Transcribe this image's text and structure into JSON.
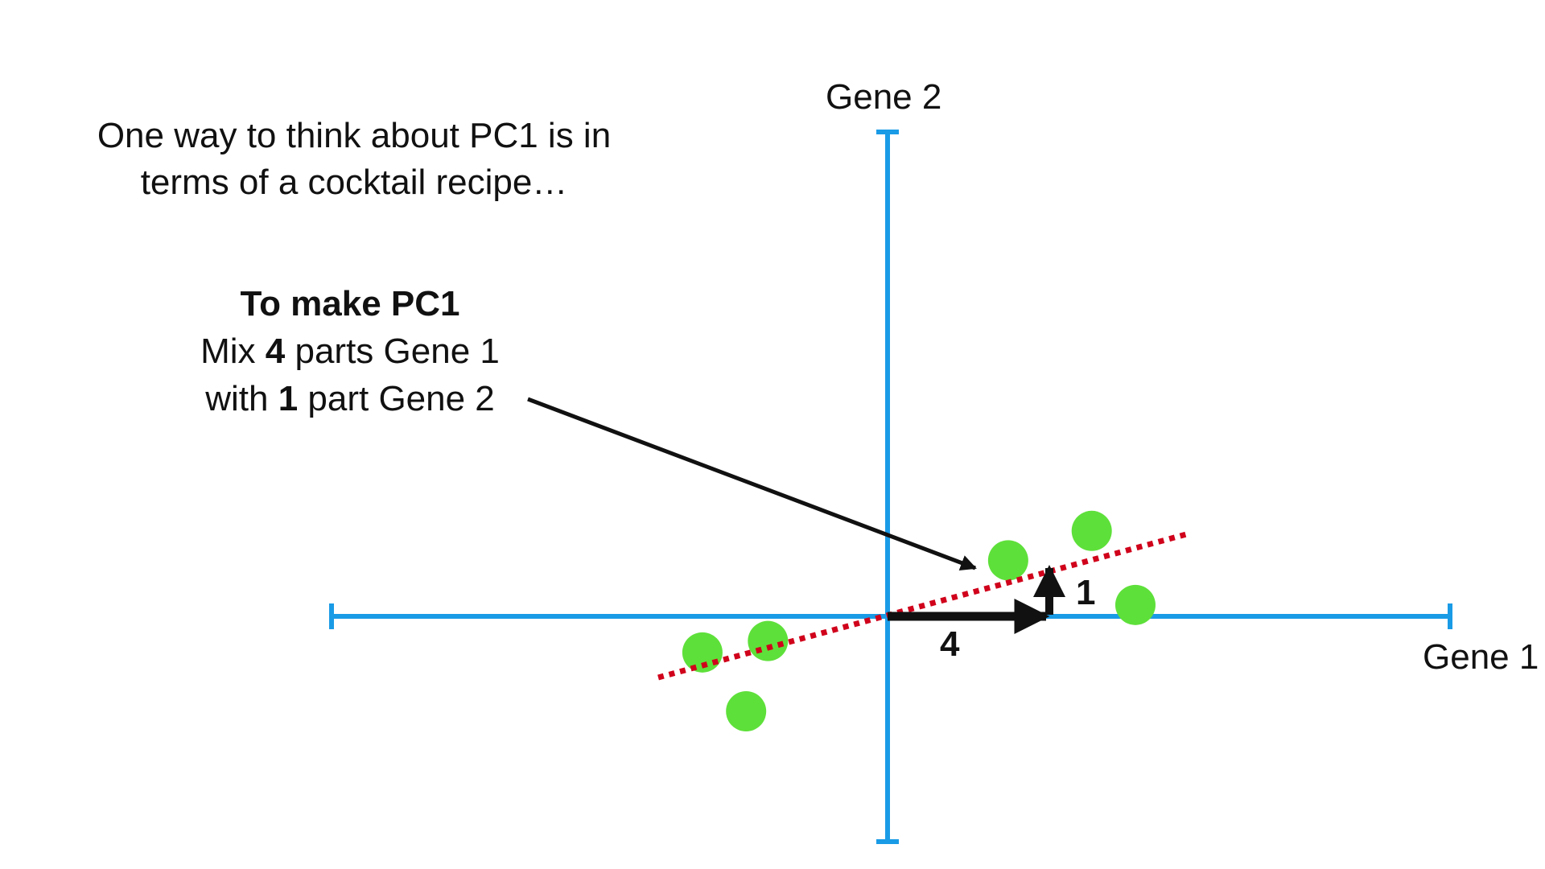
{
  "intro": {
    "line1": "One way to think about PC1 is in",
    "line2": "terms of a cocktail recipe…"
  },
  "recipe": {
    "title": "To make PC1",
    "line1_pre": "Mix ",
    "line1_num": "4",
    "line1_post": " parts Gene 1",
    "line2_pre": "with ",
    "line2_num": "1",
    "line2_post": " part Gene 2"
  },
  "axes": {
    "x_label": "Gene 1",
    "y_label": "Gene 2",
    "axis_color": "#1a9be6"
  },
  "components": {
    "gene1_parts": "4",
    "gene2_parts": "1"
  },
  "pc1_line_color": "#d0021b",
  "point_color": "#5ee03a",
  "points": [
    {
      "gene1": -1.95,
      "gene2": -0.38
    },
    {
      "gene1": -1.26,
      "gene2": -0.26
    },
    {
      "gene1": -1.49,
      "gene2": -1.0
    },
    {
      "gene1": 1.27,
      "gene2": 0.59
    },
    {
      "gene1": 2.15,
      "gene2": 0.9
    },
    {
      "gene1": 2.61,
      "gene2": 0.12
    }
  ]
}
